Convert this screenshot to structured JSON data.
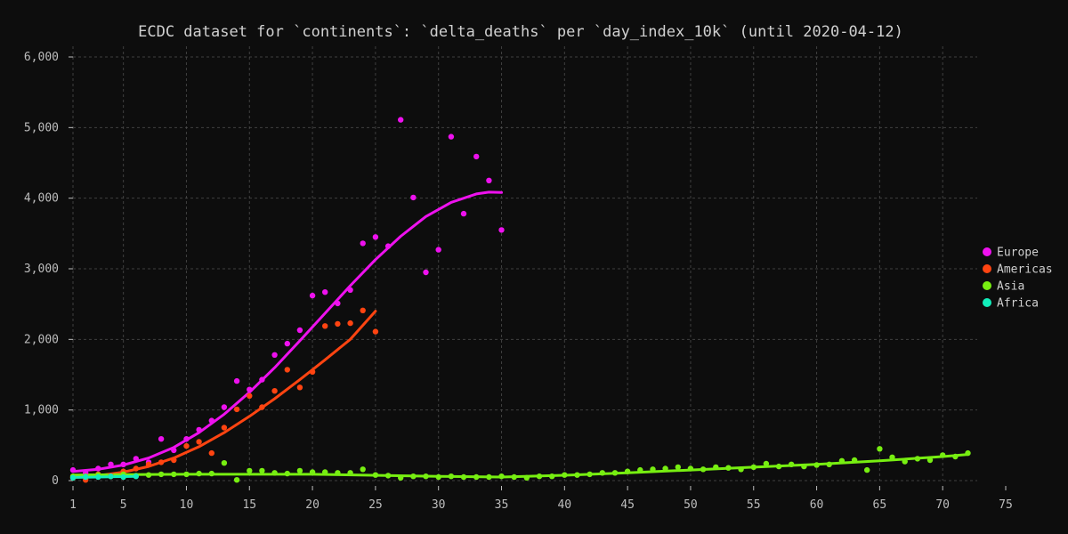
{
  "chart_data": {
    "type": "scatter",
    "title": "ECDC dataset for `continents`: `delta_deaths` per `day_index_10k` (until 2020-04-12)",
    "xlabel": "",
    "ylabel": "",
    "xlim": [
      1,
      75
    ],
    "ylim": [
      0,
      6000
    ],
    "x_ticks": [
      1,
      5,
      10,
      15,
      20,
      25,
      30,
      35,
      40,
      45,
      50,
      55,
      60,
      65,
      70,
      75
    ],
    "y_ticks": [
      0,
      1000,
      2000,
      3000,
      4000,
      5000,
      6000
    ],
    "y_tick_labels": [
      "0",
      "1,000",
      "2,000",
      "3,000",
      "4,000",
      "5,000",
      "6,000"
    ],
    "grid": true,
    "legend_position": "right",
    "series": [
      {
        "name": "Europe",
        "color": "#ee11ee",
        "points": [
          [
            1,
            150
          ],
          [
            2,
            110
          ],
          [
            3,
            170
          ],
          [
            4,
            230
          ],
          [
            5,
            230
          ],
          [
            6,
            310
          ],
          [
            7,
            260
          ],
          [
            8,
            590
          ],
          [
            9,
            430
          ],
          [
            10,
            590
          ],
          [
            11,
            720
          ],
          [
            12,
            850
          ],
          [
            13,
            1040
          ],
          [
            14,
            1410
          ],
          [
            15,
            1290
          ],
          [
            16,
            1430
          ],
          [
            17,
            1780
          ],
          [
            18,
            1940
          ],
          [
            19,
            2130
          ],
          [
            20,
            2620
          ],
          [
            21,
            2670
          ],
          [
            22,
            2510
          ],
          [
            23,
            2700
          ],
          [
            24,
            3360
          ],
          [
            25,
            3450
          ],
          [
            26,
            3320
          ],
          [
            27,
            5110
          ],
          [
            28,
            4010
          ],
          [
            29,
            2950
          ],
          [
            30,
            3270
          ],
          [
            31,
            4870
          ],
          [
            32,
            3780
          ],
          [
            33,
            4590
          ],
          [
            34,
            4250
          ],
          [
            35,
            3550
          ]
        ],
        "trend": [
          [
            1,
            130
          ],
          [
            3,
            160
          ],
          [
            5,
            220
          ],
          [
            7,
            320
          ],
          [
            9,
            470
          ],
          [
            11,
            680
          ],
          [
            13,
            940
          ],
          [
            15,
            1250
          ],
          [
            17,
            1600
          ],
          [
            19,
            1980
          ],
          [
            21,
            2370
          ],
          [
            23,
            2760
          ],
          [
            25,
            3130
          ],
          [
            27,
            3460
          ],
          [
            29,
            3740
          ],
          [
            31,
            3940
          ],
          [
            33,
            4060
          ],
          [
            34,
            4085
          ],
          [
            35,
            4080
          ]
        ]
      },
      {
        "name": "Americas",
        "color": "#ff4411",
        "points": [
          [
            1,
            40
          ],
          [
            2,
            10
          ],
          [
            3,
            90
          ],
          [
            4,
            70
          ],
          [
            5,
            130
          ],
          [
            6,
            170
          ],
          [
            7,
            230
          ],
          [
            8,
            260
          ],
          [
            9,
            290
          ],
          [
            10,
            490
          ],
          [
            11,
            550
          ],
          [
            12,
            390
          ],
          [
            13,
            750
          ],
          [
            14,
            1010
          ],
          [
            15,
            1200
          ],
          [
            16,
            1040
          ],
          [
            17,
            1270
          ],
          [
            18,
            1570
          ],
          [
            19,
            1320
          ],
          [
            20,
            1540
          ],
          [
            21,
            2190
          ],
          [
            22,
            2220
          ],
          [
            23,
            2230
          ],
          [
            24,
            2410
          ],
          [
            25,
            2110
          ]
        ],
        "trend": [
          [
            1,
            40
          ],
          [
            3,
            70
          ],
          [
            5,
            120
          ],
          [
            7,
            200
          ],
          [
            9,
            320
          ],
          [
            11,
            480
          ],
          [
            13,
            680
          ],
          [
            15,
            910
          ],
          [
            17,
            1160
          ],
          [
            19,
            1430
          ],
          [
            21,
            1710
          ],
          [
            23,
            2000
          ],
          [
            25,
            2400
          ]
        ]
      },
      {
        "name": "Asia",
        "color": "#77ee11",
        "points": [
          [
            1,
            60
          ],
          [
            2,
            60
          ],
          [
            3,
            80
          ],
          [
            4,
            60
          ],
          [
            5,
            90
          ],
          [
            6,
            70
          ],
          [
            7,
            80
          ],
          [
            8,
            90
          ],
          [
            9,
            90
          ],
          [
            10,
            90
          ],
          [
            11,
            100
          ],
          [
            12,
            100
          ],
          [
            13,
            250
          ],
          [
            14,
            10
          ],
          [
            15,
            140
          ],
          [
            16,
            140
          ],
          [
            17,
            110
          ],
          [
            18,
            100
          ],
          [
            19,
            140
          ],
          [
            20,
            120
          ],
          [
            21,
            120
          ],
          [
            22,
            110
          ],
          [
            23,
            110
          ],
          [
            24,
            160
          ],
          [
            25,
            80
          ],
          [
            26,
            70
          ],
          [
            27,
            40
          ],
          [
            28,
            60
          ],
          [
            29,
            60
          ],
          [
            30,
            50
          ],
          [
            31,
            60
          ],
          [
            32,
            50
          ],
          [
            33,
            50
          ],
          [
            34,
            50
          ],
          [
            35,
            60
          ],
          [
            36,
            50
          ],
          [
            37,
            40
          ],
          [
            38,
            60
          ],
          [
            39,
            60
          ],
          [
            40,
            80
          ],
          [
            41,
            80
          ],
          [
            42,
            90
          ],
          [
            43,
            110
          ],
          [
            44,
            110
          ],
          [
            45,
            130
          ],
          [
            46,
            150
          ],
          [
            47,
            160
          ],
          [
            48,
            170
          ],
          [
            49,
            190
          ],
          [
            50,
            170
          ],
          [
            51,
            160
          ],
          [
            52,
            190
          ],
          [
            53,
            180
          ],
          [
            54,
            160
          ],
          [
            55,
            190
          ],
          [
            56,
            240
          ],
          [
            57,
            200
          ],
          [
            58,
            230
          ],
          [
            59,
            200
          ],
          [
            60,
            220
          ],
          [
            61,
            230
          ],
          [
            62,
            280
          ],
          [
            63,
            290
          ],
          [
            64,
            150
          ],
          [
            65,
            450
          ],
          [
            66,
            330
          ],
          [
            67,
            270
          ],
          [
            68,
            310
          ],
          [
            69,
            290
          ],
          [
            70,
            360
          ],
          [
            71,
            340
          ],
          [
            72,
            390
          ]
        ],
        "trend": [
          [
            1,
            80
          ],
          [
            10,
            90
          ],
          [
            20,
            90
          ],
          [
            30,
            60
          ],
          [
            35,
            50
          ],
          [
            40,
            75
          ],
          [
            45,
            110
          ],
          [
            50,
            150
          ],
          [
            55,
            190
          ],
          [
            60,
            230
          ],
          [
            65,
            280
          ],
          [
            70,
            340
          ],
          [
            72,
            370
          ]
        ]
      },
      {
        "name": "Africa",
        "color": "#11eebb",
        "points": [
          [
            1,
            40
          ],
          [
            2,
            50
          ],
          [
            3,
            50
          ],
          [
            4,
            60
          ],
          [
            5,
            50
          ],
          [
            6,
            60
          ]
        ],
        "trend": [
          [
            1,
            45
          ],
          [
            2,
            48
          ],
          [
            3,
            51
          ],
          [
            4,
            54
          ],
          [
            5,
            57
          ],
          [
            6,
            60
          ]
        ]
      }
    ]
  }
}
